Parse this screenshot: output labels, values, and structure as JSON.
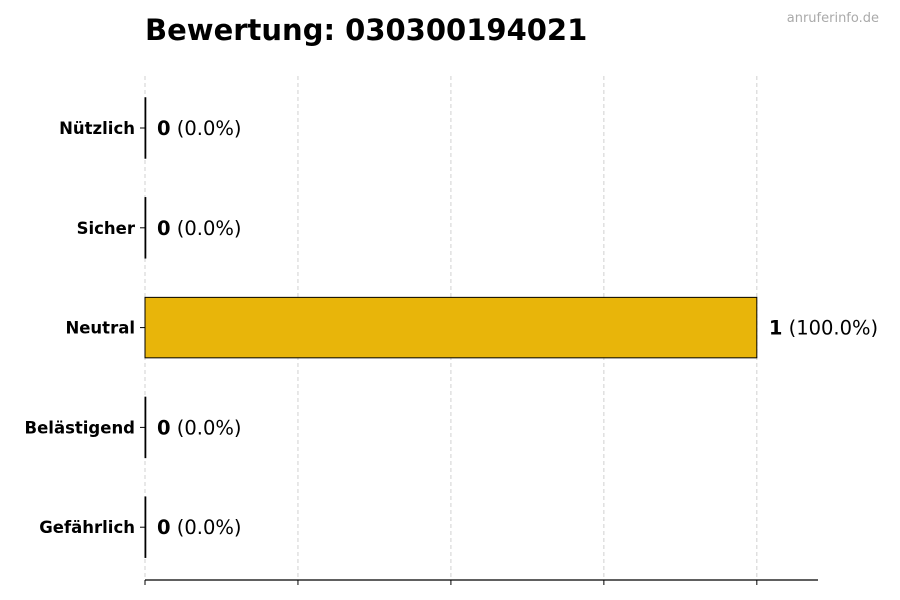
{
  "chart_data": {
    "type": "bar",
    "orientation": "horizontal",
    "title": "Bewertung: 030300194021",
    "watermark": "anruferinfo.de",
    "categories": [
      "Nützlich",
      "Sicher",
      "Neutral",
      "Belästigend",
      "Gefährlich"
    ],
    "values": [
      0,
      0,
      1,
      0,
      0
    ],
    "percent_labels": [
      "(0.0%)",
      "(0.0%)",
      "(100.0%)",
      "(0.0%)",
      "(0.0%)"
    ],
    "xlabel": "",
    "ylabel": "",
    "xlim": [
      0,
      1.1
    ],
    "xticks": [
      0,
      0.25,
      0.5,
      0.75,
      1.0
    ],
    "xtick_labels_shown": false,
    "grid": "x, dashed",
    "bar_color": "#E8B50A",
    "bar_edge_color": "#000000"
  }
}
